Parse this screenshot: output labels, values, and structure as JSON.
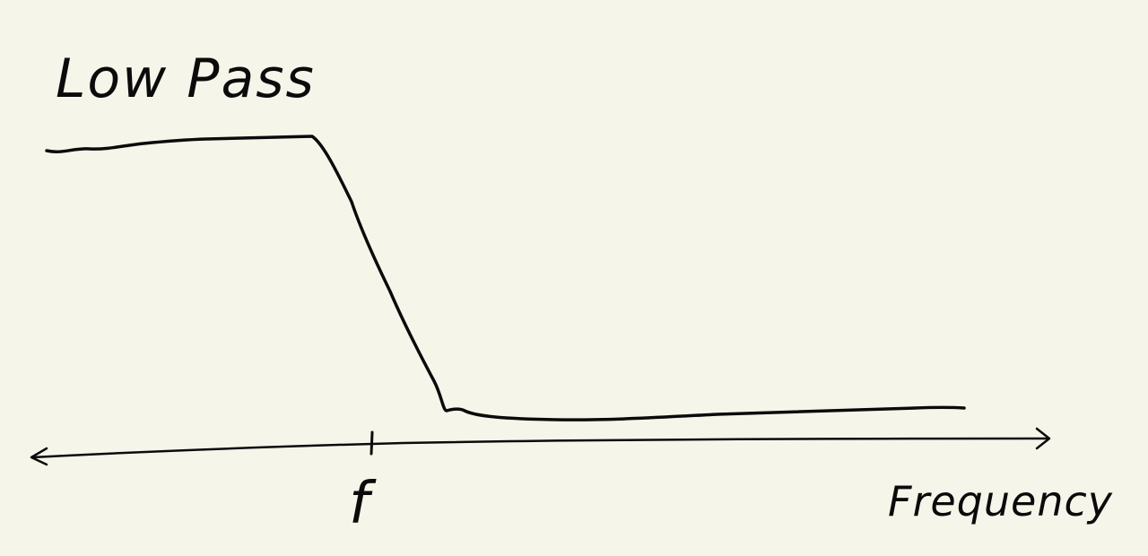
{
  "title": "Low Pass",
  "axis": {
    "cutoff_label": "f",
    "x_label": "Frequency"
  },
  "colors": {
    "paper": "#f6f5ea",
    "ink": "#0b0b0b"
  },
  "curve": {
    "type": "low-pass filter response",
    "passband": "high gain",
    "stopband": "low gain"
  }
}
